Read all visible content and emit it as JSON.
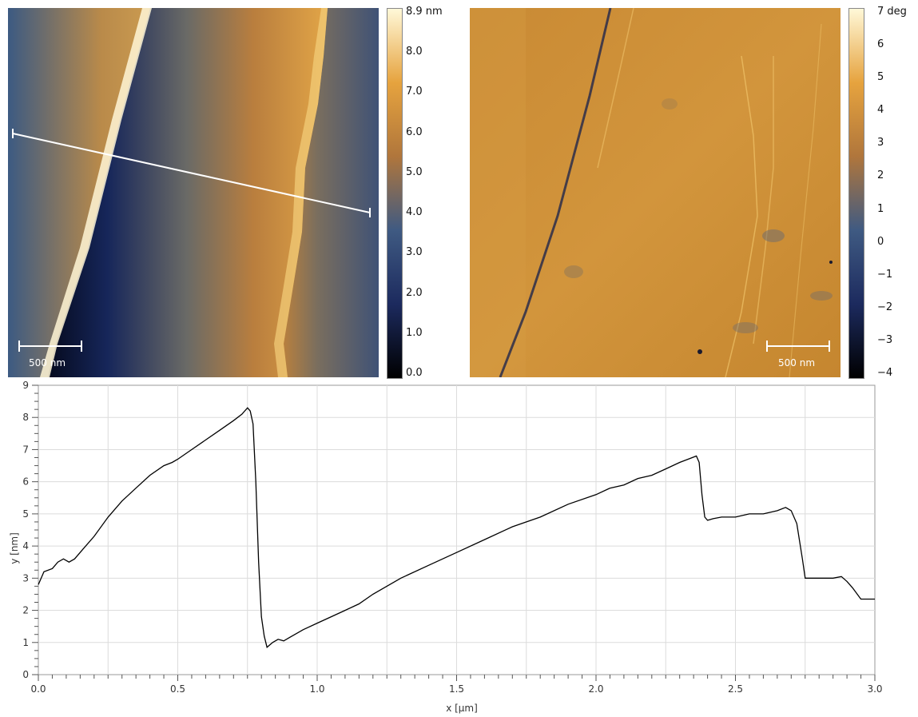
{
  "topography": {
    "scale_bar_label": "500 nm",
    "colorbar": {
      "labels": [
        "8.9 nm",
        "8.0",
        "7.0",
        "6.0",
        "5.0",
        "4.0",
        "3.0",
        "2.0",
        "1.0",
        "0.0"
      ],
      "colors": [
        "#000000",
        "#1c2a5e",
        "#3f5a82",
        "#b0763c",
        "#e6a33e",
        "#fff8d8"
      ]
    }
  },
  "phase": {
    "scale_bar_label": "500 nm",
    "colorbar": {
      "labels": [
        "7 deg",
        "6",
        "5",
        "4",
        "3",
        "2",
        "1",
        "0",
        "−1",
        "−2",
        "−3",
        "−4"
      ],
      "colors": [
        "#000000",
        "#1c2a5e",
        "#3f5a82",
        "#b0763c",
        "#e6a33e",
        "#fff8d8"
      ]
    }
  },
  "chart_data": {
    "type": "line",
    "xlabel": "x [µm]",
    "ylabel": "y [nm]",
    "xlim": [
      0,
      3.0
    ],
    "ylim": [
      0,
      9
    ],
    "xticks": [
      "0.0",
      "0.5",
      "1.0",
      "1.5",
      "2.0",
      "2.5",
      "3.0"
    ],
    "yticks": [
      "0",
      "1",
      "2",
      "3",
      "4",
      "5",
      "6",
      "7",
      "8",
      "9"
    ],
    "grid": true,
    "series": [
      {
        "color": "#000000",
        "x": [
          0.0,
          0.02,
          0.05,
          0.07,
          0.09,
          0.11,
          0.13,
          0.16,
          0.2,
          0.25,
          0.3,
          0.35,
          0.4,
          0.45,
          0.48,
          0.5,
          0.55,
          0.6,
          0.65,
          0.7,
          0.73,
          0.75,
          0.76,
          0.77,
          0.78,
          0.79,
          0.8,
          0.81,
          0.82,
          0.84,
          0.86,
          0.88,
          0.9,
          0.95,
          1.0,
          1.05,
          1.1,
          1.15,
          1.2,
          1.3,
          1.4,
          1.5,
          1.6,
          1.7,
          1.8,
          1.9,
          2.0,
          2.05,
          2.1,
          2.15,
          2.2,
          2.25,
          2.3,
          2.33,
          2.36,
          2.37,
          2.38,
          2.39,
          2.4,
          2.42,
          2.45,
          2.5,
          2.55,
          2.6,
          2.65,
          2.68,
          2.7,
          2.72,
          2.74,
          2.75,
          2.76,
          2.8,
          2.85,
          2.88,
          2.9,
          2.92,
          2.95,
          2.98,
          3.0
        ],
        "y": [
          2.8,
          3.2,
          3.3,
          3.5,
          3.6,
          3.5,
          3.6,
          3.9,
          4.3,
          4.9,
          5.4,
          5.8,
          6.2,
          6.5,
          6.6,
          6.7,
          7.0,
          7.3,
          7.6,
          7.9,
          8.1,
          8.3,
          8.2,
          7.8,
          6.0,
          3.5,
          1.8,
          1.2,
          0.85,
          1.0,
          1.1,
          1.05,
          1.15,
          1.4,
          1.6,
          1.8,
          2.0,
          2.2,
          2.5,
          3.0,
          3.4,
          3.8,
          4.2,
          4.6,
          4.9,
          5.3,
          5.6,
          5.8,
          5.9,
          6.1,
          6.2,
          6.4,
          6.6,
          6.7,
          6.8,
          6.6,
          5.6,
          4.9,
          4.8,
          4.85,
          4.9,
          4.9,
          5.0,
          5.0,
          5.1,
          5.2,
          5.1,
          4.7,
          3.6,
          3.0,
          3.0,
          3.0,
          3.0,
          3.05,
          2.9,
          2.7,
          2.35,
          2.35,
          2.35
        ]
      }
    ]
  }
}
